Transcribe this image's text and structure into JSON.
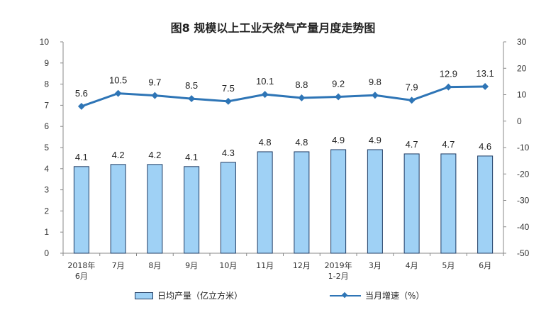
{
  "title": "图8  规模以上工业天然气产量月度走势图",
  "colors": {
    "bar_fill": "#9fd1f5",
    "bar_stroke": "#1f3b63",
    "line": "#2e75b6"
  },
  "chart_data": {
    "type": "bar+line",
    "title": "图8  规模以上工业天然气产量月度走势图",
    "categories": [
      [
        "2018年",
        "6月"
      ],
      [
        "7月"
      ],
      [
        "8月"
      ],
      [
        "9月"
      ],
      [
        "10月"
      ],
      [
        "11月"
      ],
      [
        "12月"
      ],
      [
        "2019年",
        "1-2月"
      ],
      [
        "3月"
      ],
      [
        "4月"
      ],
      [
        "5月"
      ],
      [
        "6月"
      ]
    ],
    "series": [
      {
        "name": "日均产量（亿立方米）",
        "type": "bar",
        "axis": "left",
        "values": [
          4.1,
          4.2,
          4.2,
          4.1,
          4.3,
          4.8,
          4.8,
          4.9,
          4.9,
          4.7,
          4.7,
          4.6
        ],
        "labels": [
          "4.1",
          "4.2",
          "4.2",
          "4.1",
          "4.3",
          "4.8",
          "4.8",
          "4.9",
          "4.9",
          "4.7",
          "4.7",
          "4.6"
        ]
      },
      {
        "name": "当月增速（%）",
        "type": "line",
        "axis": "right",
        "values": [
          5.6,
          10.5,
          9.7,
          8.5,
          7.5,
          10.1,
          8.8,
          9.2,
          9.8,
          7.9,
          12.9,
          13.1
        ],
        "labels": [
          "5.6",
          "10.5",
          "9.7",
          "8.5",
          "7.5",
          "10.1",
          "8.8",
          "9.2",
          "9.8",
          "7.9",
          "12.9",
          "13.1"
        ]
      }
    ],
    "y_left": {
      "min": 0,
      "max": 10,
      "step": 1,
      "ticks": [
        "0",
        "1",
        "2",
        "3",
        "4",
        "5",
        "6",
        "7",
        "8",
        "9",
        "10"
      ]
    },
    "y_right": {
      "min": -50,
      "max": 30,
      "step": 10,
      "ticks": [
        "-50",
        "-40",
        "-30",
        "-20",
        "-10",
        "0",
        "10",
        "20",
        "30"
      ]
    },
    "grid": false,
    "legend_position": "bottom"
  }
}
